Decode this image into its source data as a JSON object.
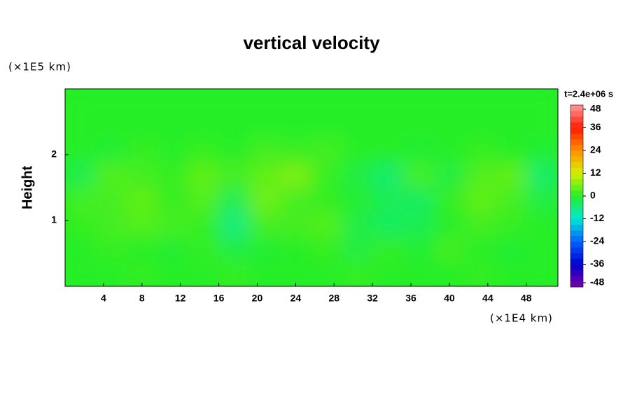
{
  "chart_data": {
    "type": "contour",
    "title": "vertical velocity",
    "y_label": "Height",
    "y_unit": "(×1E5 km)",
    "x_unit": "(×1E4 km)",
    "time_label": "t=2.4e+06 s",
    "xlim": [
      0,
      51.3
    ],
    "ylim": [
      0,
      3
    ],
    "xticks": [
      4,
      8,
      12,
      16,
      20,
      24,
      28,
      32,
      36,
      40,
      44,
      48
    ],
    "yticks": [
      1,
      2
    ],
    "clim": [
      -48,
      48
    ],
    "cticks": [
      -48,
      -36,
      -24,
      -12,
      0,
      12,
      24,
      36,
      48
    ],
    "colormap": [
      "#7a00a8",
      "#0000d0",
      "#0060ff",
      "#00e8d8",
      "#26ee26",
      "#d8f000",
      "#ff9000",
      "#ff1a00",
      "#ff9a9a"
    ],
    "z": [
      [
        0,
        0,
        1,
        0,
        0,
        1,
        0,
        0,
        0,
        1,
        0,
        0,
        0,
        1,
        0,
        0
      ],
      [
        0,
        1,
        0,
        -1,
        1,
        -2,
        -1,
        0,
        1,
        -2,
        1,
        -1,
        2,
        0,
        -1,
        0
      ],
      [
        1,
        2,
        3,
        2,
        1,
        -6,
        2,
        2,
        3,
        -2,
        -4,
        -3,
        0,
        2,
        1,
        0
      ],
      [
        2,
        2,
        4,
        1,
        3,
        -3,
        5,
        2,
        1,
        -1,
        -3,
        -4,
        1,
        4,
        2,
        -2
      ],
      [
        -3,
        3,
        2,
        1,
        4,
        2,
        4,
        6,
        1,
        -2,
        -5,
        2,
        -2,
        3,
        4,
        -5
      ],
      [
        0,
        -1,
        1,
        0,
        1,
        0,
        2,
        1,
        2,
        0,
        0,
        -1,
        0,
        1,
        0,
        -1
      ],
      [
        0,
        0,
        0,
        0,
        0,
        0,
        0,
        0,
        0,
        0,
        0,
        0,
        0,
        0,
        0,
        0
      ],
      [
        0,
        0,
        0,
        0,
        0,
        0,
        0,
        0,
        0,
        0,
        0,
        0,
        0,
        0,
        0,
        0
      ]
    ]
  }
}
